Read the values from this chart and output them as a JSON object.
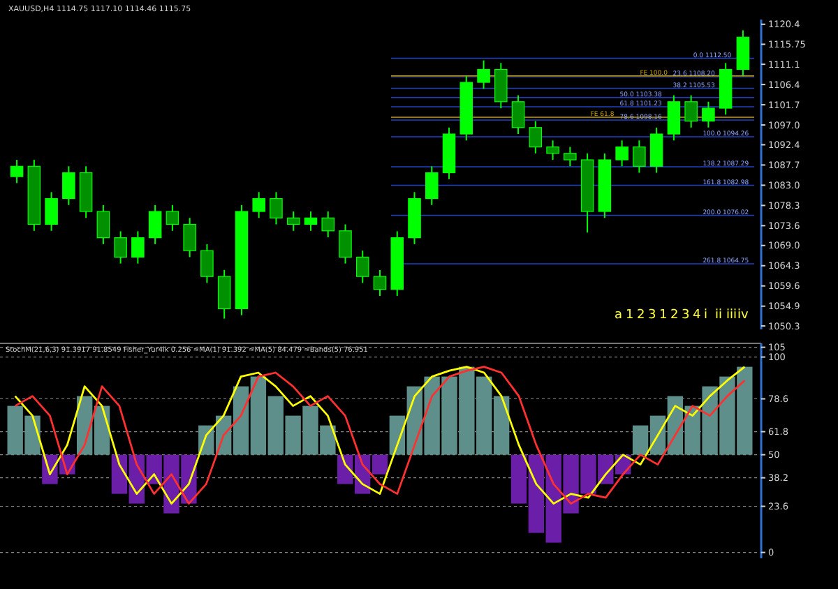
{
  "chart_data": [
    {
      "type": "candlestick",
      "title": "XAUUSD,H4  1114.75 1117.10 1114.46 1115.75",
      "categories": [
        null,
        null,
        null,
        null,
        null,
        null,
        null,
        null,
        null,
        null,
        null,
        null,
        null,
        null,
        null,
        null,
        null,
        null,
        null,
        null,
        null,
        null,
        null,
        null,
        null,
        null,
        null,
        null,
        null,
        null,
        null,
        null,
        null,
        null,
        null,
        null,
        null,
        null,
        null,
        null,
        null,
        null,
        null
      ],
      "ohlc": [
        [
          1085.0,
          1088.9,
          1083.5,
          1087.4
        ],
        [
          1087.4,
          1088.9,
          1072.4,
          1073.9
        ],
        [
          1073.9,
          1081.4,
          1072.4,
          1079.9
        ],
        [
          1079.9,
          1087.4,
          1078.4,
          1085.9
        ],
        [
          1085.9,
          1087.4,
          1075.4,
          1076.9
        ],
        [
          1076.9,
          1078.4,
          1069.3,
          1070.8
        ],
        [
          1070.8,
          1072.3,
          1064.8,
          1066.3
        ],
        [
          1066.3,
          1072.3,
          1064.8,
          1070.8
        ],
        [
          1070.8,
          1078.4,
          1069.3,
          1076.9
        ],
        [
          1076.9,
          1078.4,
          1072.4,
          1073.9
        ],
        [
          1073.9,
          1075.4,
          1066.3,
          1067.8
        ],
        [
          1067.8,
          1069.3,
          1060.3,
          1061.8
        ],
        [
          1061.8,
          1063.3,
          1052.0,
          1054.3
        ],
        [
          1054.3,
          1078.4,
          1052.8,
          1076.9
        ],
        [
          1076.9,
          1081.4,
          1075.4,
          1079.9
        ],
        [
          1079.9,
          1081.4,
          1073.9,
          1075.4
        ],
        [
          1075.4,
          1076.9,
          1072.4,
          1073.9
        ],
        [
          1073.9,
          1076.9,
          1072.4,
          1075.4
        ],
        [
          1075.4,
          1076.9,
          1070.9,
          1072.4
        ],
        [
          1072.4,
          1073.9,
          1064.8,
          1066.3
        ],
        [
          1066.3,
          1067.8,
          1060.3,
          1061.8
        ],
        [
          1061.8,
          1063.3,
          1057.3,
          1058.8
        ],
        [
          1058.8,
          1072.3,
          1057.3,
          1070.8
        ],
        [
          1070.8,
          1081.4,
          1069.3,
          1079.9
        ],
        [
          1079.9,
          1087.4,
          1078.4,
          1085.9
        ],
        [
          1085.9,
          1096.4,
          1084.4,
          1094.9
        ],
        [
          1094.9,
          1108.4,
          1093.4,
          1106.9
        ],
        [
          1106.9,
          1112.0,
          1105.4,
          1109.9
        ],
        [
          1109.9,
          1111.4,
          1100.9,
          1102.4
        ],
        [
          1102.4,
          1103.9,
          1094.9,
          1096.4
        ],
        [
          1096.4,
          1097.9,
          1090.4,
          1091.9
        ],
        [
          1091.9,
          1093.4,
          1088.9,
          1090.4
        ],
        [
          1090.4,
          1091.9,
          1087.4,
          1088.9
        ],
        [
          1088.9,
          1090.4,
          1072.0,
          1076.9
        ],
        [
          1076.9,
          1090.4,
          1075.4,
          1088.9
        ],
        [
          1088.9,
          1093.4,
          1087.4,
          1091.9
        ],
        [
          1091.9,
          1093.4,
          1085.9,
          1087.4
        ],
        [
          1087.4,
          1096.4,
          1085.9,
          1094.9
        ],
        [
          1094.9,
          1103.9,
          1093.4,
          1102.4
        ],
        [
          1102.4,
          1103.9,
          1096.4,
          1097.9
        ],
        [
          1097.9,
          1102.4,
          1096.4,
          1100.9
        ],
        [
          1100.9,
          1111.4,
          1099.4,
          1109.9
        ],
        [
          1109.9,
          1119.0,
          1108.4,
          1117.4
        ]
      ],
      "color": "#00ff00",
      "ylim": [
        1049.5,
        1121.5
      ],
      "yticks": [
        {
          "value": 1120.4,
          "label": "1120.4"
        },
        {
          "value": 1115.75,
          "label": "1115.75"
        },
        {
          "value": 1111.1,
          "label": "1111.1"
        },
        {
          "value": 1106.4,
          "label": "1106.4"
        },
        {
          "value": 1101.7,
          "label": "1101.7"
        },
        {
          "value": 1097,
          "label": "1097.0"
        },
        {
          "value": 1092.4,
          "label": "1092.4"
        },
        {
          "value": 1087.7,
          "label": "1087.7"
        },
        {
          "value": 1083,
          "label": "1083.0"
        },
        {
          "value": 1078.3,
          "label": "1078.3"
        },
        {
          "value": 1073.6,
          "label": "1073.6"
        },
        {
          "value": 1069,
          "label": "1069.0"
        },
        {
          "value": 1064.3,
          "label": "1064.3"
        },
        {
          "value": 1059.6,
          "label": "1059.6"
        },
        {
          "value": 1054.9,
          "label": "1054.9"
        },
        {
          "value": 1050.3,
          "label": "1050.3"
        }
      ],
      "ref_lines": [
        {
          "axis": "y",
          "value": 1112.5,
          "label": "0.0 1112.50",
          "color": "#2040c0"
        },
        {
          "axis": "y",
          "value": 1108.2,
          "label": "23.6 1108.20",
          "color": "#2040c0"
        },
        {
          "axis": "y",
          "value": 1105.53,
          "label": "38.2 1105.53",
          "color": "#2040c0"
        },
        {
          "axis": "y",
          "value": 1103.38,
          "label": "50.0 1103.38",
          "color": "#2040c0"
        },
        {
          "axis": "y",
          "value": 1101.23,
          "label": "61.8 1101.23",
          "color": "#2040c0"
        },
        {
          "axis": "y",
          "value": 1098.16,
          "label": "78.6 1098.16",
          "color": "#2040c0"
        },
        {
          "axis": "y",
          "value": 1094.26,
          "label": "100.0 1094.26",
          "color": "#2040c0"
        },
        {
          "axis": "y",
          "value": 1087.29,
          "label": "138.2 1087.29",
          "color": "#2040c0"
        },
        {
          "axis": "y",
          "value": 1082.98,
          "label": "161.8 1082.98",
          "color": "#2040c0"
        },
        {
          "axis": "y",
          "value": 1076.02,
          "label": "200.0 1076.02",
          "color": "#2040c0"
        },
        {
          "axis": "y",
          "value": 1064.75,
          "label": "261.8 1064.75",
          "color": "#2040c0"
        },
        {
          "axis": "y",
          "value": 1108.4,
          "label": "FE 100.0",
          "color": "#c8a000"
        },
        {
          "axis": "y",
          "value": 1098.8,
          "label": "FE 61.8",
          "color": "#c8a000"
        }
      ],
      "annotations": [
        "a",
        "1",
        "2",
        "3",
        "1",
        "2",
        "3",
        "4",
        "i",
        "ii",
        "iii",
        "iv"
      ]
    },
    {
      "type": "bar",
      "title": "StochM(21,6,3) 91.3917 91.8549  Fisher_Yur4ik 0.256  ≈MA(1) 91.392  ≈MA(5) 84.479  ≈Bands(5) 76.951",
      "categories": [
        null,
        null,
        null,
        null,
        null,
        null,
        null,
        null,
        null,
        null,
        null,
        null,
        null,
        null,
        null,
        null,
        null,
        null,
        null,
        null,
        null,
        null,
        null,
        null,
        null,
        null,
        null,
        null,
        null,
        null,
        null,
        null,
        null,
        null,
        null,
        null,
        null,
        null,
        null,
        null,
        null,
        null,
        null
      ],
      "base": [
        50,
        50,
        50,
        50,
        50,
        50,
        50,
        50,
        50,
        50,
        50,
        50,
        50,
        50,
        50,
        50,
        50,
        50,
        50,
        50,
        50,
        50,
        50,
        50,
        50,
        50,
        50,
        50,
        50,
        50,
        50,
        50,
        50,
        50,
        50,
        50,
        50,
        50,
        50,
        50,
        50,
        50,
        50
      ],
      "values": [
        25,
        20,
        -15,
        -10,
        30,
        25,
        -20,
        -25,
        -15,
        -30,
        -25,
        15,
        20,
        35,
        40,
        30,
        20,
        25,
        15,
        -15,
        -20,
        -10,
        20,
        35,
        40,
        40,
        45,
        40,
        30,
        -25,
        -40,
        -45,
        -30,
        -20,
        -15,
        -10,
        15,
        20,
        30,
        25,
        35,
        40,
        45
      ],
      "colors": [
        "#5f8f8a",
        "#5f8f8a",
        "#6b1fa8",
        "#6b1fa8",
        "#5f8f8a",
        "#5f8f8a",
        "#6b1fa8",
        "#6b1fa8",
        "#6b1fa8",
        "#6b1fa8",
        "#6b1fa8",
        "#5f8f8a",
        "#5f8f8a",
        "#5f8f8a",
        "#5f8f8a",
        "#5f8f8a",
        "#5f8f8a",
        "#5f8f8a",
        "#5f8f8a",
        "#6b1fa8",
        "#6b1fa8",
        "#6b1fa8",
        "#5f8f8a",
        "#5f8f8a",
        "#5f8f8a",
        "#5f8f8a",
        "#5f8f8a",
        "#5f8f8a",
        "#5f8f8a",
        "#6b1fa8",
        "#6b1fa8",
        "#6b1fa8",
        "#6b1fa8",
        "#6b1fa8",
        "#6b1fa8",
        "#6b1fa8",
        "#5f8f8a",
        "#5f8f8a",
        "#5f8f8a",
        "#5f8f8a",
        "#5f8f8a",
        "#5f8f8a",
        "#5f8f8a"
      ],
      "series": [
        {
          "type": "line",
          "color": "#ffff00",
          "values": [
            80,
            70,
            40,
            55,
            85,
            75,
            45,
            30,
            40,
            25,
            35,
            60,
            70,
            90,
            92,
            85,
            75,
            80,
            70,
            45,
            35,
            30,
            55,
            80,
            90,
            93,
            95,
            92,
            80,
            55,
            35,
            25,
            30,
            28,
            40,
            50,
            45,
            60,
            75,
            70,
            80,
            88,
            95
          ]
        },
        {
          "type": "line",
          "color": "#ff3030",
          "values": [
            75,
            80,
            70,
            40,
            55,
            85,
            75,
            45,
            30,
            40,
            25,
            35,
            60,
            70,
            90,
            92,
            85,
            75,
            80,
            70,
            45,
            35,
            30,
            55,
            80,
            90,
            93,
            95,
            92,
            80,
            55,
            35,
            25,
            30,
            28,
            40,
            50,
            45,
            60,
            75,
            70,
            80,
            88
          ]
        }
      ],
      "ylim": [
        -3,
        107
      ],
      "yticks": [
        105,
        100,
        78.6,
        61.8,
        50,
        38.2,
        23.6,
        0
      ],
      "grid": "y",
      "line_style": "solid"
    }
  ]
}
